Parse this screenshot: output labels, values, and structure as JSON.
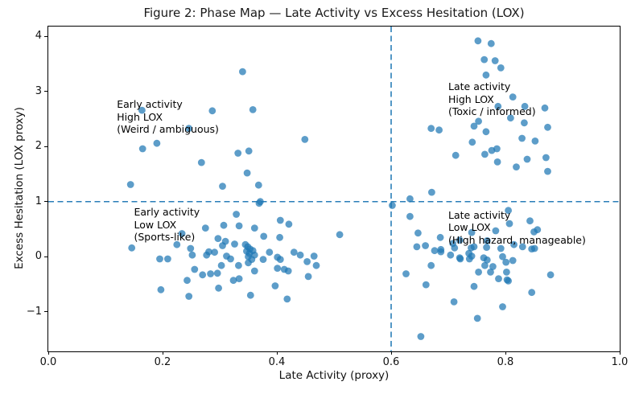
{
  "chart_data": {
    "type": "scatter",
    "title": "Figure 2: Phase Map — Late Activity vs Excess Hesitation (LOX)",
    "xlabel": "Late Activity (proxy)",
    "ylabel": "Excess Hesitation (LOX proxy)",
    "xlim": [
      0.0,
      1.0
    ],
    "ylim": [
      -1.72,
      4.18
    ],
    "grid": false,
    "legend": "none",
    "xticks": [
      0.0,
      0.2,
      0.4,
      0.6,
      0.8,
      1.0
    ],
    "xtick_labels": [
      "0.0",
      "0.2",
      "0.4",
      "0.6",
      "0.8",
      "1.0"
    ],
    "yticks": [
      -1,
      0,
      1,
      2,
      3,
      4
    ],
    "ytick_labels": [
      "−1",
      "0",
      "1",
      "2",
      "3",
      "4"
    ],
    "reference_lines": {
      "vline_x": 0.6,
      "hline_y": 1.0,
      "style": "dashed",
      "color": "#1f77b4"
    },
    "marker": {
      "color": "#1f77b4",
      "opacity": 0.72,
      "radius_px": 4.4
    },
    "annotations": [
      {
        "x": 0.12,
        "y": 2.88,
        "lines": [
          "Early activity",
          "High LOX",
          "(Weird / ambiguous)"
        ]
      },
      {
        "x": 0.15,
        "y": 0.92,
        "lines": [
          "Early activity",
          "Low LOX",
          "(Sports-like)"
        ]
      },
      {
        "x": 0.7,
        "y": 3.2,
        "lines": [
          "Late activity",
          "High LOX",
          "(Toxic / informed)"
        ]
      },
      {
        "x": 0.7,
        "y": 0.87,
        "lines": [
          "Late activity",
          "Low LOX",
          "(High hazard, manageable)"
        ]
      }
    ],
    "points": [
      [
        0.34,
        3.36
      ],
      [
        0.164,
        2.66
      ],
      [
        0.287,
        2.65
      ],
      [
        0.358,
        2.67
      ],
      [
        0.246,
        2.33
      ],
      [
        0.449,
        2.13
      ],
      [
        0.19,
        2.06
      ],
      [
        0.165,
        1.96
      ],
      [
        0.332,
        1.88
      ],
      [
        0.351,
        1.92
      ],
      [
        0.268,
        1.71
      ],
      [
        0.348,
        1.52
      ],
      [
        0.144,
        1.31
      ],
      [
        0.305,
        1.28
      ],
      [
        0.368,
        1.3
      ],
      [
        0.371,
        1.0
      ],
      [
        0.752,
        3.92
      ],
      [
        0.775,
        3.87
      ],
      [
        0.763,
        3.58
      ],
      [
        0.782,
        3.56
      ],
      [
        0.792,
        3.43
      ],
      [
        0.766,
        3.3
      ],
      [
        0.813,
        2.9
      ],
      [
        0.834,
        2.73
      ],
      [
        0.787,
        2.73
      ],
      [
        0.869,
        2.7
      ],
      [
        0.809,
        2.52
      ],
      [
        0.833,
        2.43
      ],
      [
        0.753,
        2.46
      ],
      [
        0.745,
        2.37
      ],
      [
        0.67,
        2.33
      ],
      [
        0.684,
        2.3
      ],
      [
        0.766,
        2.27
      ],
      [
        0.874,
        2.35
      ],
      [
        0.742,
        2.08
      ],
      [
        0.829,
        2.15
      ],
      [
        0.852,
        2.1
      ],
      [
        0.713,
        1.84
      ],
      [
        0.764,
        1.86
      ],
      [
        0.776,
        1.93
      ],
      [
        0.785,
        1.96
      ],
      [
        0.786,
        1.72
      ],
      [
        0.838,
        1.77
      ],
      [
        0.819,
        1.63
      ],
      [
        0.871,
        1.8
      ],
      [
        0.874,
        1.55
      ],
      [
        0.671,
        1.17
      ],
      [
        0.633,
        1.05
      ],
      [
        0.369,
        0.97
      ],
      [
        0.329,
        0.77
      ],
      [
        0.406,
        0.66
      ],
      [
        0.421,
        0.59
      ],
      [
        0.275,
        0.52
      ],
      [
        0.307,
        0.57
      ],
      [
        0.334,
        0.56
      ],
      [
        0.361,
        0.52
      ],
      [
        0.377,
        0.37
      ],
      [
        0.405,
        0.35
      ],
      [
        0.51,
        0.4
      ],
      [
        0.234,
        0.42
      ],
      [
        0.249,
        0.15
      ],
      [
        0.252,
        0.03
      ],
      [
        0.281,
        0.09
      ],
      [
        0.225,
        0.22
      ],
      [
        0.297,
        0.33
      ],
      [
        0.31,
        0.28
      ],
      [
        0.305,
        0.2
      ],
      [
        0.326,
        0.23
      ],
      [
        0.146,
        0.16
      ],
      [
        0.195,
        -0.04
      ],
      [
        0.209,
        -0.04
      ],
      [
        0.277,
        0.03
      ],
      [
        0.291,
        0.08
      ],
      [
        0.312,
        0.01
      ],
      [
        0.319,
        -0.04
      ],
      [
        0.345,
        0.22
      ],
      [
        0.349,
        0.18
      ],
      [
        0.353,
        0.14
      ],
      [
        0.347,
        0.1
      ],
      [
        0.352,
        0.06
      ],
      [
        0.358,
        0.11
      ],
      [
        0.361,
        0.03
      ],
      [
        0.35,
        0.0
      ],
      [
        0.356,
        -0.05
      ],
      [
        0.387,
        0.08
      ],
      [
        0.401,
        -0.01
      ],
      [
        0.406,
        -0.05
      ],
      [
        0.43,
        0.08
      ],
      [
        0.441,
        0.03
      ],
      [
        0.453,
        -0.09
      ],
      [
        0.465,
        0.01
      ],
      [
        0.376,
        -0.05
      ],
      [
        0.303,
        -0.16
      ],
      [
        0.333,
        -0.16
      ],
      [
        0.35,
        -0.11
      ],
      [
        0.361,
        -0.26
      ],
      [
        0.401,
        -0.21
      ],
      [
        0.413,
        -0.23
      ],
      [
        0.42,
        -0.26
      ],
      [
        0.455,
        -0.36
      ],
      [
        0.469,
        -0.16
      ],
      [
        0.243,
        -0.43
      ],
      [
        0.256,
        -0.23
      ],
      [
        0.27,
        -0.33
      ],
      [
        0.284,
        -0.31
      ],
      [
        0.296,
        -0.3
      ],
      [
        0.324,
        -0.43
      ],
      [
        0.334,
        -0.4
      ],
      [
        0.298,
        -0.57
      ],
      [
        0.354,
        -0.7
      ],
      [
        0.397,
        -0.53
      ],
      [
        0.418,
        -0.77
      ],
      [
        0.197,
        -0.6
      ],
      [
        0.246,
        -0.72
      ],
      [
        0.602,
        0.93
      ],
      [
        0.633,
        0.73
      ],
      [
        0.805,
        0.84
      ],
      [
        0.807,
        0.6
      ],
      [
        0.843,
        0.65
      ],
      [
        0.856,
        0.49
      ],
      [
        0.783,
        0.47
      ],
      [
        0.85,
        0.45
      ],
      [
        0.741,
        0.44
      ],
      [
        0.647,
        0.43
      ],
      [
        0.686,
        0.35
      ],
      [
        0.72,
        0.3
      ],
      [
        0.768,
        0.29
      ],
      [
        0.708,
        0.24
      ],
      [
        0.815,
        0.22
      ],
      [
        0.66,
        0.2
      ],
      [
        0.645,
        0.18
      ],
      [
        0.676,
        0.11
      ],
      [
        0.687,
        0.13
      ],
      [
        0.711,
        0.16
      ],
      [
        0.736,
        0.06
      ],
      [
        0.74,
        0.16
      ],
      [
        0.745,
        0.18
      ],
      [
        0.767,
        0.17
      ],
      [
        0.792,
        0.15
      ],
      [
        0.83,
        0.18
      ],
      [
        0.851,
        0.15
      ],
      [
        0.846,
        0.14
      ],
      [
        0.687,
        0.09
      ],
      [
        0.704,
        0.03
      ],
      [
        0.721,
        -0.04
      ],
      [
        0.737,
        -0.04
      ],
      [
        0.768,
        -0.06
      ],
      [
        0.795,
        0.0
      ],
      [
        0.72,
        -0.02
      ],
      [
        0.741,
        0.01
      ],
      [
        0.762,
        -0.02
      ],
      [
        0.801,
        -0.1
      ],
      [
        0.813,
        -0.07
      ],
      [
        0.764,
        -0.16
      ],
      [
        0.778,
        -0.18
      ],
      [
        0.788,
        -0.4
      ],
      [
        0.803,
        -0.42
      ],
      [
        0.805,
        -0.44
      ],
      [
        0.753,
        -0.28
      ],
      [
        0.774,
        -0.28
      ],
      [
        0.802,
        -0.28
      ],
      [
        0.879,
        -0.33
      ],
      [
        0.745,
        -0.54
      ],
      [
        0.846,
        -0.65
      ],
      [
        0.71,
        -0.82
      ],
      [
        0.795,
        -0.91
      ],
      [
        0.751,
        -1.12
      ],
      [
        0.652,
        -1.45
      ],
      [
        0.626,
        -0.31
      ],
      [
        0.661,
        -0.51
      ],
      [
        0.67,
        -0.16
      ]
    ]
  }
}
